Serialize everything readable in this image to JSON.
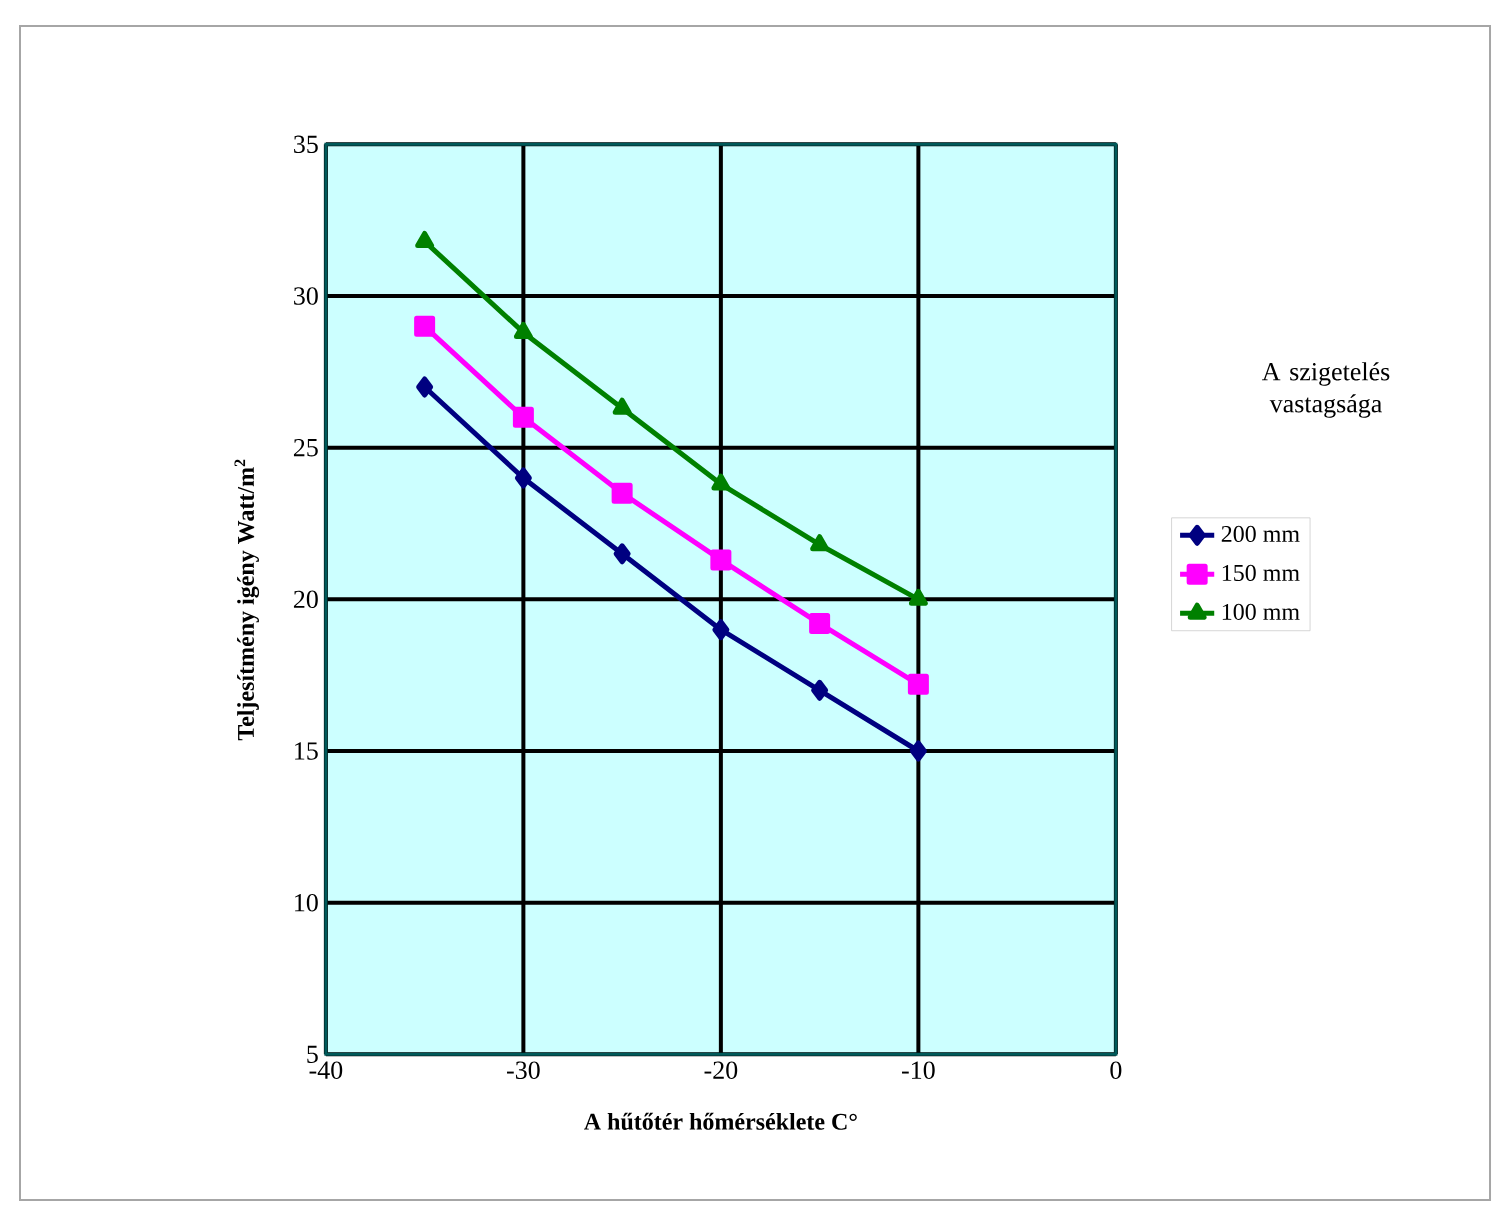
{
  "chart_data": {
    "type": "line",
    "xlabel": "A hűtőtér hőmérséklete C°",
    "ylabel": "Teljesítmény igény Watt/m$^{2}$",
    "legend_title": "A szigetelés vastagsága",
    "x": [
      -35,
      -30,
      -25,
      -20,
      -15,
      -10
    ],
    "series": [
      {
        "name": "200 mm",
        "color": "#000080",
        "marker": "diamond",
        "values": [
          27,
          24,
          21.5,
          19,
          17,
          15
        ]
      },
      {
        "name": "150 mm",
        "color": "#ff00ff",
        "marker": "square",
        "values": [
          29,
          26,
          23.5,
          21.3,
          19.2,
          17.2
        ]
      },
      {
        "name": "100 mm",
        "color": "#008000",
        "marker": "triangle",
        "values": [
          31.8,
          28.8,
          26.3,
          23.8,
          21.8,
          20
        ]
      }
    ],
    "xlim": [
      -40,
      0
    ],
    "ylim": [
      5,
      35
    ],
    "xticks": [
      -40,
      -30,
      -20,
      -10,
      0
    ],
    "yticks": [
      5,
      10,
      15,
      20,
      25,
      30,
      35
    ],
    "grid": true,
    "legend": "right",
    "line_style": "solid"
  }
}
